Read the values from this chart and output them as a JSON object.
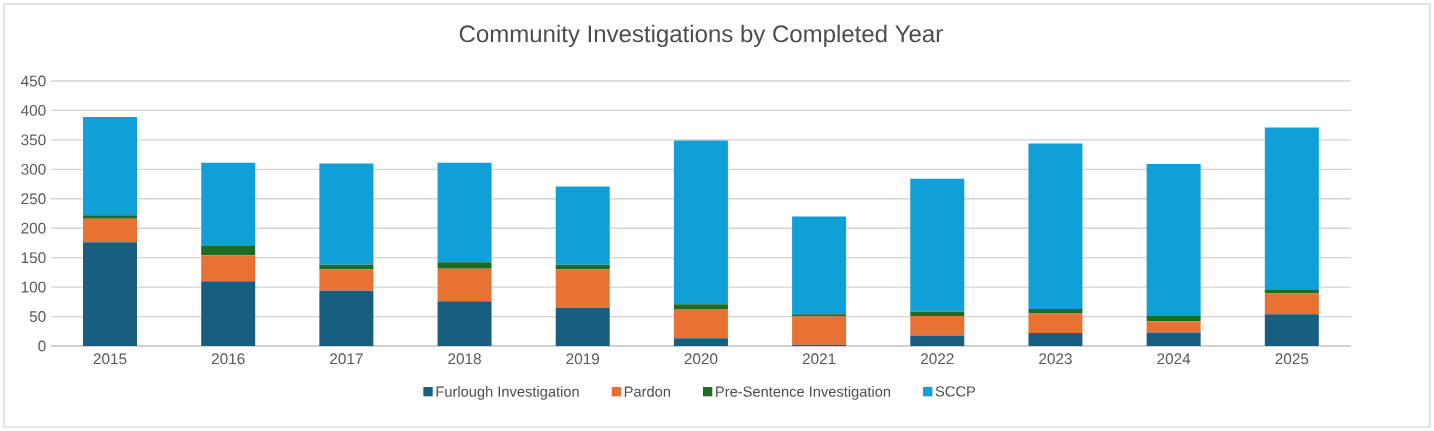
{
  "chart_data": {
    "type": "bar",
    "title": "Community Investigations by Completed Year",
    "stacked": true,
    "categories": [
      "2015",
      "2016",
      "2017",
      "2018",
      "2019",
      "2020",
      "2021",
      "2022",
      "2023",
      "2024",
      "2025"
    ],
    "series": [
      {
        "name": "Furlough Investigation",
        "color": "#175e81",
        "values": [
          176,
          110,
          94,
          76,
          65,
          13,
          2,
          18,
          22,
          23,
          54
        ]
      },
      {
        "name": "Pardon",
        "color": "#e87233",
        "values": [
          40,
          44,
          36,
          55,
          65,
          50,
          48,
          33,
          33,
          19,
          35
        ]
      },
      {
        "name": "Pre-Sentence Investigation",
        "color": "#1e6b25",
        "values": [
          6,
          16,
          8,
          11,
          8,
          8,
          4,
          7,
          8,
          9,
          6
        ]
      },
      {
        "name": "SCCP",
        "color": "#109fd6",
        "values": [
          167,
          141,
          172,
          169,
          133,
          278,
          166,
          226,
          281,
          258,
          276
        ]
      }
    ],
    "ylim": [
      0,
      450
    ],
    "yticks": [
      0,
      50,
      100,
      150,
      200,
      250,
      300,
      350,
      400,
      450
    ],
    "grid": "y",
    "legend": "bottom"
  }
}
